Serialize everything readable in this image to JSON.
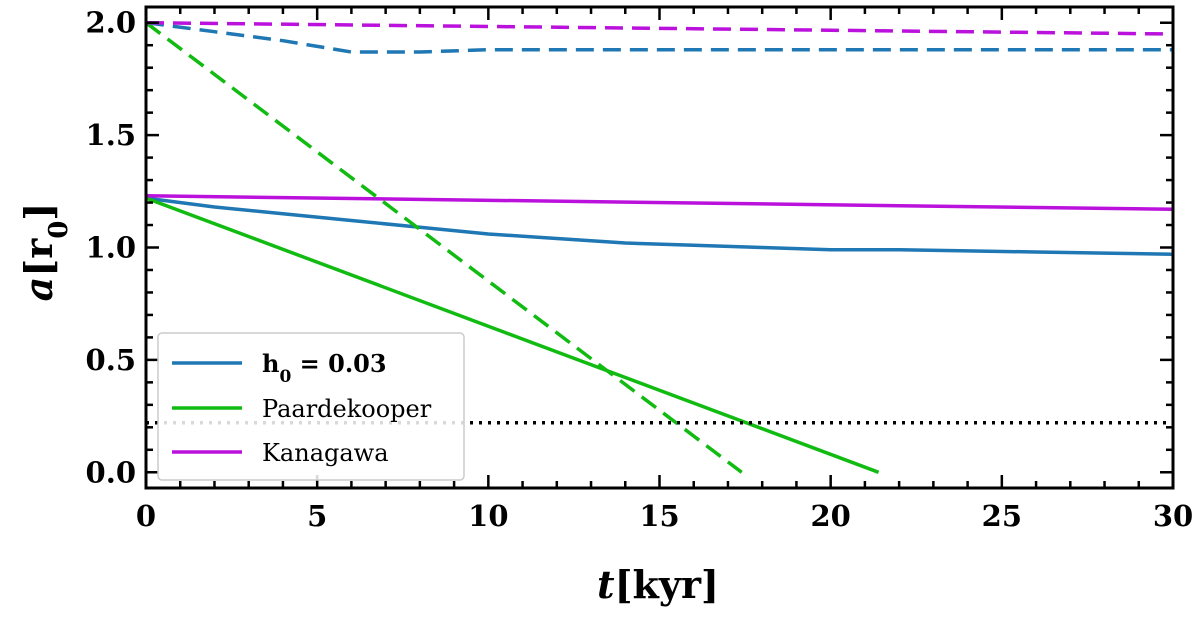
{
  "chart_data": {
    "type": "line",
    "xlabel": "t[kyr]",
    "ylabel": "a[r0]",
    "xlim": [
      0,
      30
    ],
    "ylim": [
      -0.07,
      2.07
    ],
    "xticks": [
      0,
      5,
      10,
      15,
      20,
      25,
      30
    ],
    "yticks": [
      0.0,
      0.5,
      1.0,
      1.5,
      2.0
    ],
    "xtick_labels": [
      "0",
      "5",
      "10",
      "15",
      "20",
      "25",
      "30"
    ],
    "ytick_labels": [
      "0.0",
      "0.5",
      "1.0",
      "1.5",
      "2.0"
    ],
    "grid": false,
    "legend_position": "lower-left",
    "legend": [
      {
        "label": "h0 = 0.03",
        "color": "#1f77b4"
      },
      {
        "label": "Paardekooper",
        "color": "#11bb11"
      },
      {
        "label": "Kanagawa",
        "color": "#bb11dd"
      }
    ],
    "series": [
      {
        "color": "#1f77b4",
        "dash": "solid",
        "x": [
          0,
          2,
          4,
          6,
          8,
          10,
          12,
          14,
          16,
          18,
          20,
          22,
          24,
          26,
          28,
          30
        ],
        "y": [
          1.22,
          1.18,
          1.15,
          1.12,
          1.09,
          1.06,
          1.04,
          1.02,
          1.01,
          1.0,
          0.99,
          0.99,
          0.985,
          0.98,
          0.975,
          0.97
        ]
      },
      {
        "color": "#11bb11",
        "dash": "solid",
        "x": [
          0,
          21.4
        ],
        "y": [
          1.22,
          0.0
        ]
      },
      {
        "color": "#bb11dd",
        "dash": "solid",
        "x": [
          0,
          30
        ],
        "y": [
          1.23,
          1.17
        ]
      },
      {
        "color": "#1f77b4",
        "dash": "dashed",
        "x": [
          0,
          2,
          4,
          6,
          8,
          10,
          12,
          15,
          20,
          25,
          30
        ],
        "y": [
          2.0,
          1.96,
          1.92,
          1.87,
          1.87,
          1.88,
          1.88,
          1.88,
          1.88,
          1.88,
          1.88
        ]
      },
      {
        "color": "#11bb11",
        "dash": "dashed",
        "x": [
          0,
          17.4
        ],
        "y": [
          2.0,
          0.0
        ]
      },
      {
        "color": "#bb11dd",
        "dash": "dashed",
        "x": [
          0,
          30
        ],
        "y": [
          2.0,
          1.95
        ]
      },
      {
        "color": "#000000",
        "dash": "dotted",
        "x": [
          0,
          30
        ],
        "y": [
          0.22,
          0.22
        ]
      }
    ]
  }
}
